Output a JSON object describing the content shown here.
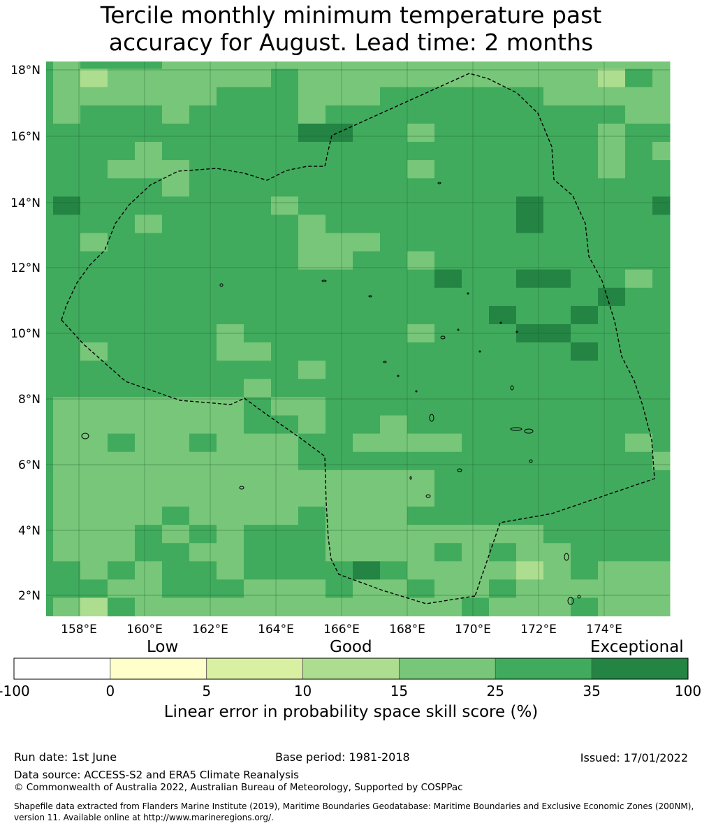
{
  "title_line1": "Tercile monthly minimum temperature past",
  "title_line2": "accuracy for August. Lead time: 2 months",
  "map": {
    "lat_labels": [
      "18°N",
      "16°N",
      "14°N",
      "12°N",
      "10°N",
      "8°N",
      "6°N",
      "4°N",
      "2°N"
    ],
    "lon_labels": [
      "158°E",
      "160°E",
      "162°E",
      "164°E",
      "166°E",
      "168°E",
      "170°E",
      "172°E",
      "174°E"
    ],
    "lat_range": [
      1.4,
      18.4
    ],
    "lon_range": [
      157.0,
      176.0
    ],
    "grid_lines": true,
    "cells": [
      "CDDDCCCCCCCCCCCCCCCCCCC",
      "CBCCCCCCDCCCCCCCCCCCBDC",
      "CCCCCCDDDCCCDDDDDDCCCCC",
      "CDDDCDDDDCDDDDDDDDDDDCC",
      "DDDDDDDDDEEDDCDDDDDDCDD",
      "DDDCDDDDDDDDDDDDDDDDCDC",
      "DDCCCDDDDDDDDCDDDDDDCDD",
      "DDDDCDDDDDDDDDDDDDDDDDD",
      "EDDDDDDDCDDDDDDDDEDDDDE",
      "DDDCDDDDDCDDDDDDDEDDDDD",
      "DCDDDDDDDCCCDDDDDDDDDDD",
      "DDDDDDDDDCCDDCDDDDDDDDD",
      "DDDDDDDDDDDDDDEDDEEDDCD",
      "DDDDDDDDDDDDDDDDDDDDEDD",
      "DDDDDDDDDDDDDDDDEDDEDDD",
      "DDDDDDCDDDDDDCDDDEEDDDD",
      "DCDDDDCCDDDDDDDDDDDEDDD",
      "DDDDDDDDDCDDDDDDDDDDDDD",
      "DDDDDDDCDDDDDDDDDDDDDDD",
      "CCCCCCCDCCDDDDDDDDDDDDD",
      "CCCCCCCDDCDDCDDDDDDDDDD",
      "CCDCCDCCCDDCCCCDDDDDDCD",
      "CCCCCCCCCDDDDDDDDDDDDDC",
      "CCCCCCCCCCCCCCDDDDDDDDD",
      "CCCCCCCCCCCCCCDDDDDDDDD",
      "CCCCDCCCCDCCCDDDDDDDDDD",
      "CCCDCDCDDDCCCCCCCCDDDDD",
      "CCCDDCCDDDCCCCDCDCCDDDD",
      "DCDCDDCDDDDEDCCCCBCDCCC",
      "DDCCDDDCCCDCCDCCDCCCCCC",
      "CBDCCCCCCCCCCCCDCCCDCCC"
    ]
  },
  "legend": {
    "class_low": "Low",
    "class_good": "Good",
    "class_exceptional": "Exceptional",
    "ticks": [
      "-100",
      "0",
      "5",
      "10",
      "15",
      "25",
      "35",
      "100"
    ],
    "bin_colors": [
      "#ffffff",
      "#ffffcc",
      "#d9f0a3",
      "#addd8e",
      "#78c679",
      "#41ab5d",
      "#238443"
    ],
    "title": "Linear error in probability space skill score (%)"
  },
  "footer": {
    "run_date": "Run date: 1st June",
    "base_period": "Base period: 1981-2018",
    "issued": "Issued: 17/01/2022",
    "data_source": "Data source: ACCESS-S2 and ERA5 Climate Reanalysis",
    "copyright": "© Commonwealth of Australia 2022, Australian Bureau of Meteorology, Supported by COSPPac",
    "shapefile_line1": "Shapefile data extracted from Flanders Marine Institute (2019), Maritime Boundaries Geodatabase: Maritime Boundaries and Exclusive Economic Zones (200NM),",
    "shapefile_line2": "version 11. Available online at http://www.marineregions.org/."
  }
}
